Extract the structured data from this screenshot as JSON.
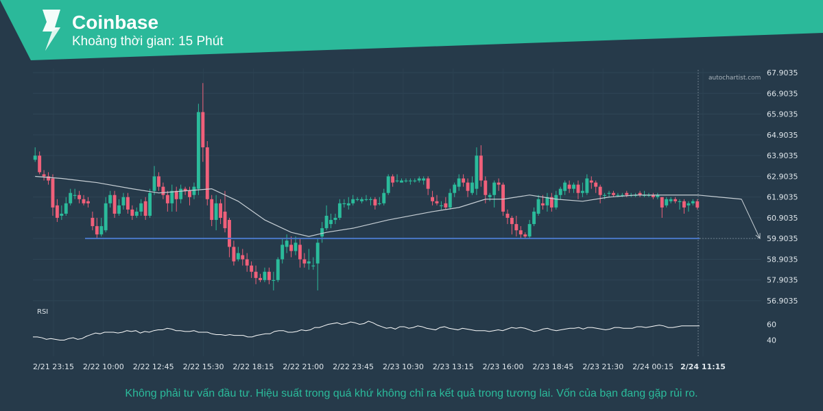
{
  "header": {
    "title": "Coinbase",
    "subtitle": "Khoảng thời gian: 15 Phút",
    "banner_color": "#2bb99a"
  },
  "watermark": "autochartist.com",
  "rsi_label": "RSI",
  "disclaimer": "Không phải tư vấn đầu tư. Hiệu suất trong quá khứ không chỉ ra kết quả trong tương lai. Vốn của bạn đang gặp rủi ro.",
  "colors": {
    "background": "#263a4a",
    "up": "#2bbb9b",
    "down": "#f0607a",
    "support": "#4a78c8",
    "ma": "#c8d0d6"
  },
  "chart_data": {
    "type": "candlestick",
    "price_axis": {
      "min": 56.9035,
      "max": 67.9035,
      "ticks": [
        "67.9035",
        "66.9035",
        "65.9035",
        "64.9035",
        "63.9035",
        "62.9035",
        "61.9035",
        "60.9035",
        "59.9035",
        "58.9035",
        "57.9035",
        "56.9035"
      ]
    },
    "time_axis": {
      "labels": [
        "2/21 23:15",
        "2/22 10:00",
        "2/22 12:45",
        "2/22 15:30",
        "2/22 18:15",
        "2/22 21:00",
        "2/22 23:45",
        "2/23 10:30",
        "2/23 13:15",
        "2/23 16:00",
        "2/23 18:45",
        "2/23 21:30",
        "2/24 00:15",
        "2/24 11:15"
      ],
      "highlight": "2/24 11:15"
    },
    "support_level": 59.9035,
    "candles": [
      [
        63.7,
        63.9,
        64.3,
        63.6
      ],
      [
        63.9,
        63.1,
        64.1,
        63.0
      ],
      [
        63.0,
        62.9,
        63.2,
        62.7
      ],
      [
        62.9,
        62.7,
        63.1,
        62.5
      ],
      [
        62.8,
        61.4,
        63.0,
        61.0
      ],
      [
        61.5,
        60.9,
        61.8,
        60.7
      ],
      [
        61.0,
        61.1,
        61.5,
        60.8
      ],
      [
        61.1,
        61.6,
        61.9,
        61.0
      ],
      [
        61.6,
        62.1,
        62.3,
        61.5
      ],
      [
        62.0,
        62.0,
        62.3,
        61.8
      ],
      [
        62.0,
        61.8,
        62.2,
        61.6
      ],
      [
        61.8,
        61.6,
        62.0,
        61.5
      ],
      [
        61.7,
        61.6,
        61.9,
        61.4
      ],
      [
        60.9,
        60.5,
        61.2,
        60.3
      ],
      [
        60.5,
        60.1,
        60.9,
        59.9
      ],
      [
        60.1,
        60.5,
        60.9,
        60.0
      ],
      [
        60.3,
        61.6,
        61.9,
        60.2
      ],
      [
        61.6,
        62.0,
        62.2,
        61.4
      ],
      [
        62.0,
        61.1,
        62.2,
        60.9
      ],
      [
        61.1,
        61.5,
        61.8,
        61.0
      ],
      [
        61.5,
        61.9,
        62.1,
        61.3
      ],
      [
        61.9,
        61.3,
        62.1,
        61.1
      ],
      [
        61.3,
        61.0,
        61.5,
        60.8
      ],
      [
        61.0,
        61.2,
        61.4,
        60.9
      ],
      [
        61.2,
        61.6,
        61.8,
        61.0
      ],
      [
        61.7,
        61.0,
        61.9,
        60.8
      ],
      [
        61.0,
        62.1,
        62.3,
        60.9
      ],
      [
        62.2,
        62.9,
        63.4,
        62.0
      ],
      [
        62.9,
        62.4,
        63.1,
        62.2
      ],
      [
        62.4,
        62.0,
        62.6,
        61.8
      ],
      [
        62.0,
        61.6,
        62.2,
        61.2
      ],
      [
        61.6,
        62.2,
        62.5,
        61.2
      ],
      [
        62.2,
        61.8,
        62.4,
        61.2
      ],
      [
        61.8,
        62.3,
        62.5,
        61.6
      ],
      [
        62.3,
        62.2,
        62.4,
        62.0
      ],
      [
        62.2,
        61.9,
        62.4,
        61.5
      ],
      [
        62.0,
        62.4,
        62.6,
        61.8
      ],
      [
        62.3,
        66.0,
        66.4,
        62.0
      ],
      [
        66.0,
        64.3,
        67.4,
        63.6
      ],
      [
        64.3,
        61.8,
        64.6,
        61.5
      ],
      [
        61.8,
        60.8,
        62.0,
        60.5
      ],
      [
        60.8,
        61.6,
        62.0,
        60.3
      ],
      [
        61.6,
        60.9,
        61.8,
        60.6
      ],
      [
        61.2,
        60.4,
        62.2,
        60.2
      ],
      [
        60.8,
        59.5,
        60.9,
        59.0
      ],
      [
        59.5,
        58.8,
        59.8,
        58.6
      ],
      [
        58.9,
        59.2,
        59.5,
        58.8
      ],
      [
        59.1,
        58.9,
        59.4,
        58.6
      ],
      [
        58.9,
        58.6,
        59.2,
        58.3
      ],
      [
        58.6,
        58.3,
        58.8,
        58.0
      ],
      [
        58.3,
        58.0,
        58.6,
        57.7
      ],
      [
        58.0,
        57.9,
        58.2,
        57.8
      ],
      [
        57.9,
        58.3,
        58.5,
        57.8
      ],
      [
        58.3,
        57.9,
        58.5,
        57.7
      ],
      [
        57.9,
        57.9,
        58.3,
        57.4
      ],
      [
        57.9,
        58.9,
        59.0,
        57.8
      ],
      [
        58.9,
        59.6,
        59.9,
        58.7
      ],
      [
        59.5,
        59.8,
        60.1,
        59.2
      ],
      [
        59.6,
        59.3,
        60.0,
        59.0
      ],
      [
        59.3,
        59.7,
        60.0,
        59.1
      ],
      [
        59.6,
        58.9,
        59.9,
        58.5
      ],
      [
        58.9,
        58.7,
        59.2,
        58.5
      ],
      [
        58.7,
        58.8,
        59.4,
        58.4
      ],
      [
        58.6,
        58.6,
        59.0,
        58.4
      ],
      [
        58.7,
        59.7,
        59.9,
        57.4
      ],
      [
        60.0,
        60.4,
        60.7,
        59.7
      ],
      [
        60.4,
        61.0,
        61.5,
        60.3
      ],
      [
        60.6,
        60.8,
        61.1,
        60.4
      ],
      [
        60.8,
        60.9,
        61.1,
        60.6
      ],
      [
        60.9,
        61.6,
        61.8,
        60.8
      ],
      [
        61.6,
        61.6,
        61.8,
        61.4
      ],
      [
        61.5,
        61.6,
        61.9,
        61.3
      ],
      [
        61.6,
        61.8,
        62.0,
        61.5
      ],
      [
        61.8,
        61.8,
        61.9,
        61.7
      ],
      [
        61.7,
        61.8,
        61.9,
        61.6
      ],
      [
        61.8,
        61.8,
        62.0,
        61.7
      ],
      [
        61.8,
        61.8,
        61.9,
        61.5
      ],
      [
        61.8,
        61.5,
        61.9,
        61.3
      ],
      [
        61.6,
        61.6,
        61.9,
        61.5
      ],
      [
        61.6,
        62.1,
        62.3,
        61.5
      ],
      [
        62.1,
        62.9,
        63.0,
        62.0
      ],
      [
        62.9,
        62.6,
        63.0,
        62.4
      ],
      [
        62.7,
        62.7,
        63.0,
        62.6
      ],
      [
        62.6,
        62.7,
        62.8,
        62.6
      ],
      [
        62.7,
        62.7,
        62.8,
        62.6
      ],
      [
        62.7,
        62.7,
        62.8,
        62.5
      ],
      [
        62.7,
        62.7,
        62.8,
        62.6
      ],
      [
        62.7,
        62.8,
        62.9,
        62.6
      ],
      [
        62.7,
        62.8,
        62.9,
        62.5
      ],
      [
        62.8,
        62.3,
        62.9,
        62.0
      ],
      [
        61.9,
        61.7,
        62.2,
        61.5
      ],
      [
        61.7,
        61.6,
        62.0,
        61.5
      ],
      [
        61.5,
        61.5,
        61.7,
        61.3
      ],
      [
        61.6,
        61.4,
        61.9,
        61.3
      ],
      [
        61.4,
        62.1,
        62.3,
        61.3
      ],
      [
        62.1,
        62.5,
        62.6,
        61.9
      ],
      [
        62.4,
        62.8,
        63.0,
        62.2
      ],
      [
        62.8,
        62.6,
        63.0,
        62.4
      ],
      [
        62.6,
        62.2,
        62.8,
        61.9
      ],
      [
        62.1,
        62.6,
        62.9,
        62.0
      ],
      [
        62.3,
        63.9,
        64.3,
        62.0
      ],
      [
        63.9,
        62.7,
        64.4,
        62.4
      ],
      [
        62.7,
        62.0,
        62.9,
        61.6
      ],
      [
        61.9,
        62.0,
        62.1,
        61.7
      ],
      [
        62.0,
        62.6,
        62.7,
        61.4
      ],
      [
        62.6,
        62.5,
        62.8,
        62.2
      ],
      [
        62.5,
        61.2,
        62.6,
        61.0
      ],
      [
        61.1,
        60.9,
        61.3,
        60.6
      ],
      [
        60.9,
        60.6,
        61.0,
        60.1
      ],
      [
        60.6,
        60.3,
        61.0,
        60.0
      ],
      [
        60.3,
        60.1,
        60.5,
        59.9
      ],
      [
        60.1,
        60.0,
        60.2,
        59.9
      ],
      [
        60.0,
        60.6,
        60.8,
        59.9
      ],
      [
        60.6,
        61.2,
        61.4,
        60.5
      ],
      [
        61.1,
        61.8,
        62.0,
        61.0
      ],
      [
        61.6,
        61.5,
        62.0,
        61.3
      ],
      [
        61.5,
        61.9,
        62.1,
        61.2
      ],
      [
        61.9,
        61.4,
        62.1,
        61.2
      ],
      [
        61.4,
        62.0,
        62.2,
        61.3
      ],
      [
        62.0,
        62.3,
        62.4,
        61.8
      ],
      [
        62.2,
        62.6,
        62.7,
        62.0
      ],
      [
        62.5,
        62.3,
        62.7,
        62.1
      ],
      [
        62.3,
        62.5,
        62.6,
        62.1
      ],
      [
        62.5,
        62.1,
        62.7,
        61.8
      ],
      [
        62.1,
        62.2,
        62.6,
        61.9
      ],
      [
        62.1,
        62.8,
        63.0,
        62.0
      ],
      [
        62.7,
        62.6,
        62.9,
        62.3
      ],
      [
        62.6,
        62.4,
        62.7,
        62.1
      ],
      [
        62.4,
        62.0,
        62.5,
        61.6
      ],
      [
        62.0,
        62.0,
        62.1,
        61.8
      ],
      [
        62.1,
        62.1,
        62.2,
        61.9
      ],
      [
        62.1,
        62.0,
        62.2,
        61.9
      ],
      [
        62.0,
        62.0,
        62.1,
        61.9
      ],
      [
        62.0,
        62.0,
        62.1,
        61.9
      ],
      [
        62.1,
        62.0,
        62.2,
        61.9
      ],
      [
        62.0,
        62.0,
        62.1,
        61.9
      ],
      [
        62.0,
        62.0,
        62.1,
        61.9
      ],
      [
        62.1,
        62.0,
        62.2,
        61.9
      ],
      [
        62.0,
        62.0,
        62.2,
        61.9
      ],
      [
        62.0,
        62.0,
        62.1,
        61.9
      ],
      [
        62.0,
        61.9,
        62.1,
        61.8
      ],
      [
        61.9,
        62.0,
        62.1,
        61.8
      ],
      [
        61.9,
        61.4,
        61.9,
        60.9
      ],
      [
        61.5,
        61.8,
        61.9,
        61.4
      ],
      [
        61.7,
        61.8,
        61.9,
        61.6
      ],
      [
        61.8,
        61.7,
        61.9,
        61.6
      ],
      [
        61.7,
        61.7,
        61.8,
        61.3
      ],
      [
        61.7,
        61.4,
        61.8,
        61.1
      ],
      [
        61.5,
        61.6,
        61.7,
        61.2
      ],
      [
        61.6,
        61.7,
        61.8,
        61.5
      ],
      [
        61.7,
        61.4,
        61.8,
        61.3
      ]
    ],
    "moving_average": [
      [
        0,
        62.9
      ],
      [
        6,
        62.8
      ],
      [
        14,
        62.6
      ],
      [
        22,
        62.3
      ],
      [
        28,
        62.1
      ],
      [
        34,
        62.2
      ],
      [
        40,
        62.3
      ],
      [
        46,
        61.7
      ],
      [
        52,
        60.8
      ],
      [
        58,
        60.2
      ],
      [
        62,
        60.0
      ],
      [
        66,
        60.2
      ],
      [
        72,
        60.4
      ],
      [
        80,
        60.8
      ],
      [
        90,
        61.2
      ],
      [
        96,
        61.4
      ],
      [
        102,
        61.8
      ],
      [
        106,
        61.8
      ],
      [
        112,
        62.0
      ],
      [
        118,
        61.8
      ],
      [
        124,
        61.7
      ],
      [
        130,
        61.9
      ],
      [
        136,
        62.0
      ],
      [
        144,
        62.0
      ],
      [
        150,
        62.0
      ],
      [
        155,
        61.9
      ],
      [
        160,
        61.8
      ]
    ],
    "projection": [
      [
        160,
        61.8
      ],
      [
        175,
        59.9035
      ]
    ],
    "rsi": {
      "label": "RSI",
      "ticks": [
        60,
        40
      ],
      "values": [
        44,
        44,
        43,
        41,
        42,
        41,
        40,
        40,
        42,
        43,
        41,
        42,
        45,
        47,
        49,
        48,
        50,
        50,
        50,
        49,
        50,
        52,
        51,
        52,
        49,
        51,
        50,
        52,
        53,
        53,
        55,
        54,
        52,
        52,
        51,
        51,
        52,
        50,
        50,
        50,
        48,
        47,
        47,
        46,
        47,
        46,
        46,
        46,
        44,
        44,
        46,
        47,
        48,
        48,
        51,
        52,
        52,
        50,
        50,
        51,
        53,
        52,
        53,
        56,
        56,
        58,
        60,
        61,
        62,
        60,
        61,
        63,
        62,
        60,
        61,
        64,
        62,
        59,
        57,
        55,
        56,
        54,
        57,
        57,
        55,
        56,
        58,
        57,
        55,
        54,
        53,
        56,
        57,
        55,
        54,
        53,
        55,
        54,
        53,
        52,
        52,
        52,
        51,
        52,
        53,
        52,
        54,
        56,
        55,
        56,
        55,
        53,
        51,
        52,
        54,
        55,
        53,
        52,
        53,
        54,
        55,
        55,
        56,
        54,
        56,
        56,
        55,
        54,
        53,
        54,
        56,
        56,
        55,
        55,
        55,
        57,
        57,
        56,
        57,
        58,
        59,
        58,
        56,
        56,
        57,
        58,
        58,
        58,
        58,
        58
      ]
    }
  }
}
